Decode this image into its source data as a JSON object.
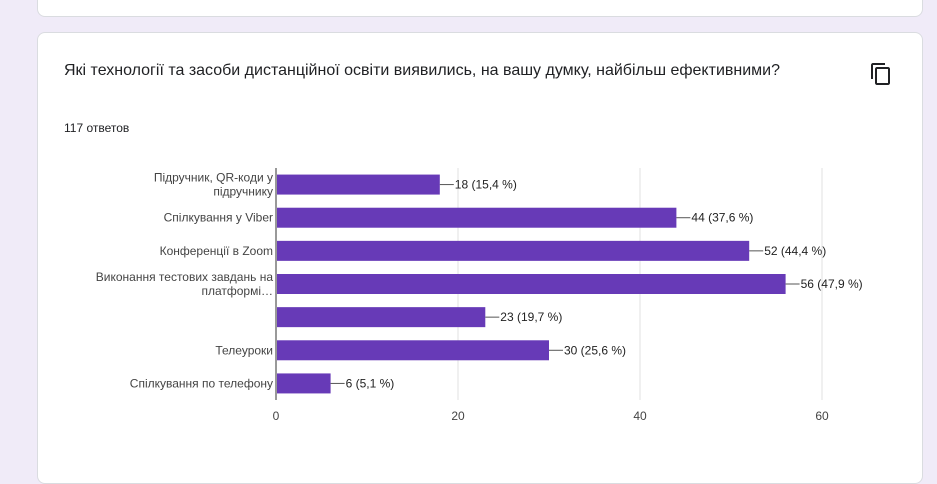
{
  "question": {
    "title": "Які технології та засоби дистанційної освіти виявились, на вашу думку, найбільш ефективними?",
    "responses": "117 ответов"
  },
  "icons": {
    "copy": "copy-icon"
  },
  "colors": {
    "bar": "#673ab7",
    "grid": "#e0e0e0",
    "text": "#202124",
    "accent": "#673ab7"
  },
  "chart_data": {
    "type": "bar",
    "orientation": "horizontal",
    "categories": [
      [
        "Підручник, QR-коди у",
        "підручнику"
      ],
      [
        "Спілкування у Viber"
      ],
      [
        "Конференції в Zoom"
      ],
      [
        "Виконання тестових завдань на",
        "платформі…"
      ],
      [
        ""
      ],
      [
        "Телеуроки"
      ],
      [
        "Спілкування по телефону"
      ]
    ],
    "values": [
      18,
      44,
      52,
      56,
      23,
      30,
      6
    ],
    "value_labels": [
      "18 (15,4 %)",
      "44 (37,6 %)",
      "52 (44,4 %)",
      "56 (47,9 %)",
      "23 (19,7 %)",
      "30 (25,6 %)",
      "6 (5,1 %)"
    ],
    "xticks": [
      0,
      20,
      40,
      60
    ],
    "xlim": [
      0,
      60
    ],
    "grid": true
  }
}
